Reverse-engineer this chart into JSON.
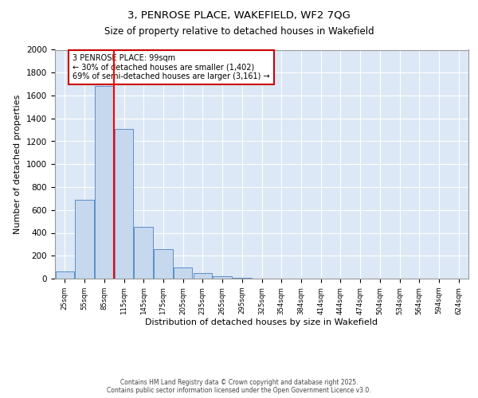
{
  "title1": "3, PENROSE PLACE, WAKEFIELD, WF2 7QG",
  "title2": "Size of property relative to detached houses in Wakefield",
  "xlabel": "Distribution of detached houses by size in Wakefield",
  "ylabel": "Number of detached properties",
  "categories": [
    "25sqm",
    "55sqm",
    "85sqm",
    "115sqm",
    "145sqm",
    "175sqm",
    "205sqm",
    "235sqm",
    "265sqm",
    "295sqm",
    "325sqm",
    "354sqm",
    "384sqm",
    "414sqm",
    "444sqm",
    "474sqm",
    "504sqm",
    "534sqm",
    "564sqm",
    "594sqm",
    "624sqm"
  ],
  "values": [
    65,
    690,
    1680,
    1310,
    450,
    255,
    95,
    50,
    20,
    5,
    2,
    1,
    0,
    0,
    0,
    0,
    0,
    0,
    0,
    0,
    0
  ],
  "bar_color": "#c5d8ee",
  "bar_edge_color": "#5b8fc9",
  "background_color": "#dce8f5",
  "grid_color": "#ffffff",
  "red_line_x": 2.5,
  "annotation_title": "3 PENROSE PLACE: 99sqm",
  "annotation_line1": "← 30% of detached houses are smaller (1,402)",
  "annotation_line2": "69% of semi-detached houses are larger (3,161) →",
  "annotation_box_color": "#cc0000",
  "ylim": [
    0,
    2000
  ],
  "yticks": [
    0,
    200,
    400,
    600,
    800,
    1000,
    1200,
    1400,
    1600,
    1800,
    2000
  ],
  "footer1": "Contains HM Land Registry data © Crown copyright and database right 2025.",
  "footer2": "Contains public sector information licensed under the Open Government Licence v3.0."
}
